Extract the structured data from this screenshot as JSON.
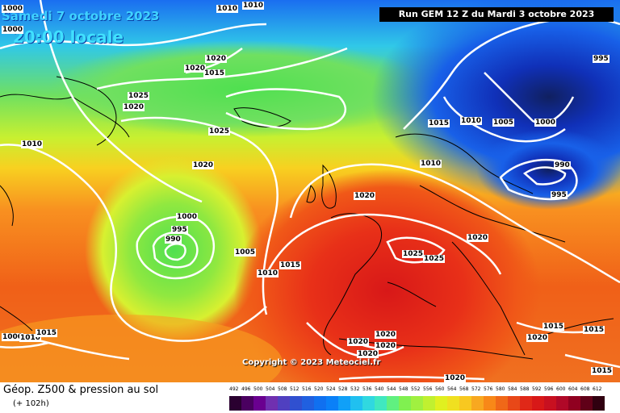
{
  "header": {
    "date": "Samedi 7 octobre 2023",
    "local_time": "20:00 locale",
    "run_info": "Run GEM 12 Z du Mardi 3 octobre 2023"
  },
  "footer": {
    "title": "Géop. Z500 & pression au sol",
    "lead_time": "(+ 102h)",
    "copyright": "Copyright © 2023 Meteociel.fr"
  },
  "colors": {
    "low": "#1030c0",
    "mid": "#80e040",
    "high": "#e82818",
    "isobar": "#ffffff"
  },
  "pressure_labels": [
    "1000",
    "1010",
    "1010",
    "1000",
    "1020",
    "1020",
    "1015",
    "1025",
    "1020",
    "1010",
    "1025",
    "1020",
    "1000",
    "995",
    "990",
    "1005",
    "1010",
    "1015",
    "1020",
    "1010",
    "1015",
    "1010",
    "1005",
    "1000",
    "995",
    "990",
    "995",
    "1020",
    "1025",
    "1025",
    "1020",
    "1020",
    "1020",
    "1020",
    "1020",
    "1015",
    "1015",
    "1015",
    "1020",
    "1000",
    "1010",
    "1015"
  ],
  "scale": {
    "labels": [
      "492",
      "496",
      "500",
      "504",
      "508",
      "512",
      "516",
      "520",
      "524",
      "528",
      "532",
      "536",
      "540",
      "544",
      "548",
      "552",
      "556",
      "560",
      "564",
      "568",
      "572",
      "576",
      "580",
      "584",
      "588",
      "592",
      "596",
      "600",
      "604",
      "608",
      "612"
    ],
    "colors": [
      "#2a0030",
      "#4a0060",
      "#6a0090",
      "#7030b0",
      "#5040c0",
      "#3050d0",
      "#2060e0",
      "#1070f0",
      "#0a80f8",
      "#10a0f8",
      "#20c0f0",
      "#30d8e0",
      "#40e8c0",
      "#60f080",
      "#80f050",
      "#a0f040",
      "#c0f030",
      "#e0f020",
      "#f0e020",
      "#f8c820",
      "#f8a820",
      "#f88818",
      "#f06818",
      "#e84818",
      "#e02818",
      "#d81818",
      "#c81020",
      "#b00828",
      "#900020",
      "#600018",
      "#300010"
    ]
  }
}
